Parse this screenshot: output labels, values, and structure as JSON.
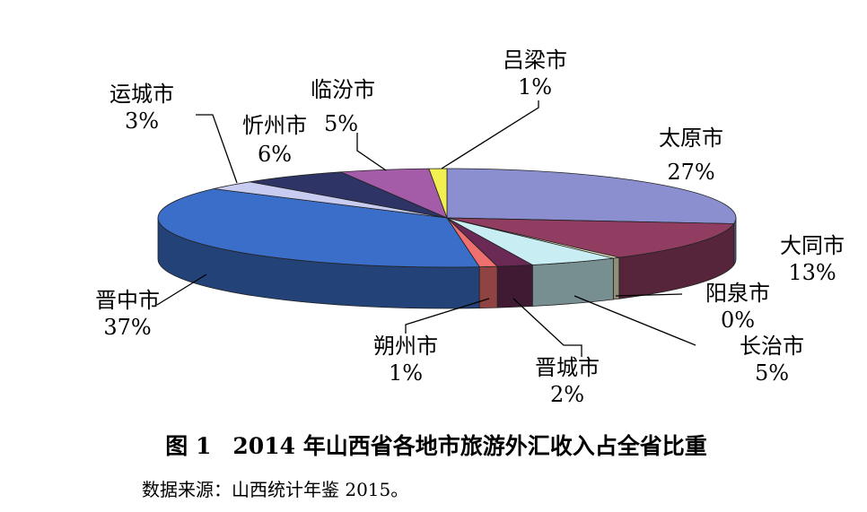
{
  "chart_data": {
    "type": "pie",
    "title": "",
    "slices": [
      {
        "name": "太原市",
        "pct_label": "27%",
        "value": 27,
        "color": "#8B8FD0"
      },
      {
        "name": "大同市",
        "pct_label": "13%",
        "value": 13,
        "color": "#913D62"
      },
      {
        "name": "阳泉市",
        "pct_label": "0%",
        "value": 0.4,
        "color": "#F0EFC8"
      },
      {
        "name": "长治市",
        "pct_label": "5%",
        "value": 5,
        "color": "#C8EEF4"
      },
      {
        "name": "晋城市",
        "pct_label": "2%",
        "value": 2,
        "color": "#6A2A55"
      },
      {
        "name": "朔州市",
        "pct_label": "1%",
        "value": 1,
        "color": "#F07070"
      },
      {
        "name": "晋中市",
        "pct_label": "37%",
        "value": 37,
        "color": "#3A6EC8"
      },
      {
        "name": "运城市",
        "pct_label": "3%",
        "value": 3,
        "color": "#C8CCF0"
      },
      {
        "name": "忻州市",
        "pct_label": "6%",
        "value": 6,
        "color": "#2E3566"
      },
      {
        "name": "临汾市",
        "pct_label": "5%",
        "value": 5,
        "color": "#A45CA8"
      },
      {
        "name": "吕梁市",
        "pct_label": "1%",
        "value": 1,
        "color": "#F2F050"
      }
    ]
  },
  "caption": {
    "figure_no": "图 1",
    "text": "2014 年山西省各地市旅游外汇收入占全省比重"
  },
  "source": "数据来源：山西统计年鉴 2015。"
}
